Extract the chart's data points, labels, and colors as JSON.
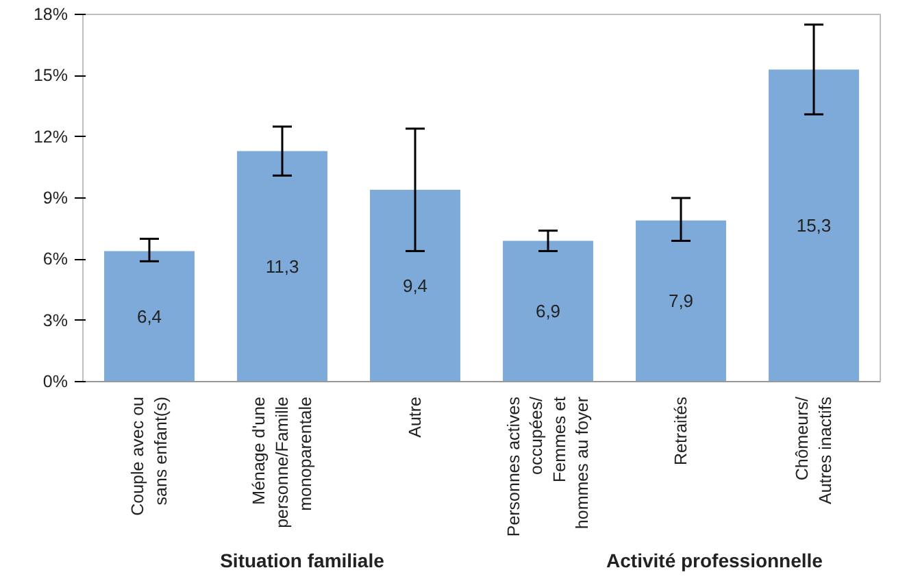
{
  "chart_data": {
    "type": "bar",
    "categories": [
      "Couple avec ou\nsans enfant(s)",
      "Ménage d'une\npersonne/Famille\nmonoparentale",
      "Autre",
      "Personnes actives\noccupées/\nFemmes et\nhommes au foyer",
      "Retraités",
      "Chômeurs/\nAutres inactifs"
    ],
    "values": [
      6.4,
      11.3,
      9.4,
      6.9,
      7.9,
      15.3
    ],
    "value_labels": [
      "6,4",
      "11,3",
      "9,4",
      "6,9",
      "7,9",
      "15,3"
    ],
    "errors": [
      [
        5.9,
        7.0
      ],
      [
        10.1,
        12.5
      ],
      [
        6.4,
        12.4
      ],
      [
        6.4,
        7.4
      ],
      [
        6.9,
        9.0
      ],
      [
        13.1,
        17.5
      ]
    ],
    "color": "#7eaad9",
    "ylim": [
      0,
      18
    ],
    "yticks": [
      {
        "value": 0,
        "label": "0%"
      },
      {
        "value": 3,
        "label": "3%"
      },
      {
        "value": 6,
        "label": "6%"
      },
      {
        "value": 9,
        "label": "9%"
      },
      {
        "value": 12,
        "label": "12%"
      },
      {
        "value": 15,
        "label": "15%"
      },
      {
        "value": 18,
        "label": "18%"
      }
    ],
    "annotations": [
      "Situation familiale",
      "Activité professionnelle"
    ],
    "grid": false
  }
}
